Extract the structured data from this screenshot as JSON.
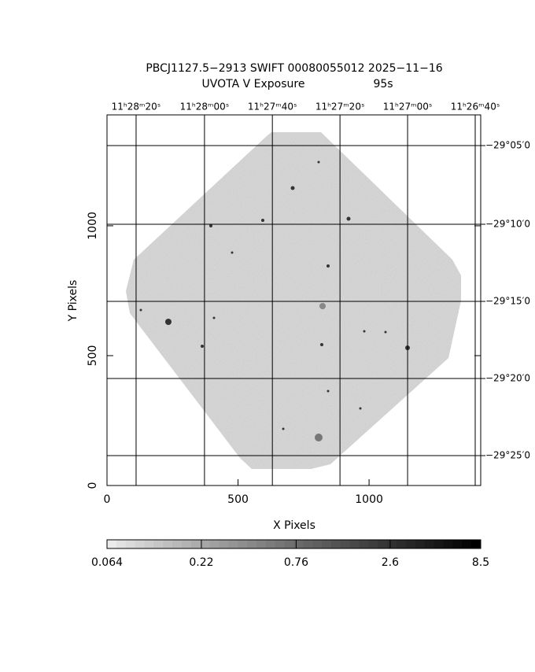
{
  "chart_data": {
    "type": "image",
    "title": "PBCJ1127.5−2913 SWIFT 00080055012 2025−11−16",
    "subtitle": "UVOTA V Exposure",
    "exposure": "95s",
    "xlabel": "X Pixels",
    "ylabel": "Y Pixels",
    "xlim": [
      0,
      1426
    ],
    "ylim": [
      0,
      1427
    ],
    "xticks": [
      0,
      500,
      1000
    ],
    "yticks": [
      0,
      500,
      1000
    ],
    "grid": true,
    "x2ticks": [
      {
        "value": 111,
        "label": "11ʰ28ᵐ20ˢ"
      },
      {
        "value": 372,
        "label": "11ʰ28ᵐ00ˢ"
      },
      {
        "value": 631,
        "label": "11ʰ27ᵐ40ˢ"
      },
      {
        "value": 889,
        "label": "11ʰ27ᵐ20ˢ"
      },
      {
        "value": 1147,
        "label": "11ʰ27ᵐ00ˢ"
      },
      {
        "value": 1405,
        "label": "11ʰ26ᵐ40ˢ"
      }
    ],
    "y2ticks": [
      {
        "value": 1309,
        "label": "−29°05′0"
      },
      {
        "value": 1006,
        "label": "−29°10′0"
      },
      {
        "value": 709,
        "label": "−29°15′0"
      },
      {
        "value": 412,
        "label": "−29°20′0"
      },
      {
        "value": 115,
        "label": "−29°25′0"
      }
    ],
    "colorbar": {
      "scale": "log",
      "lim": [
        0.064,
        8.5
      ],
      "ticks": [
        0.064,
        0.22,
        0.76,
        2.6,
        8.5
      ]
    }
  }
}
